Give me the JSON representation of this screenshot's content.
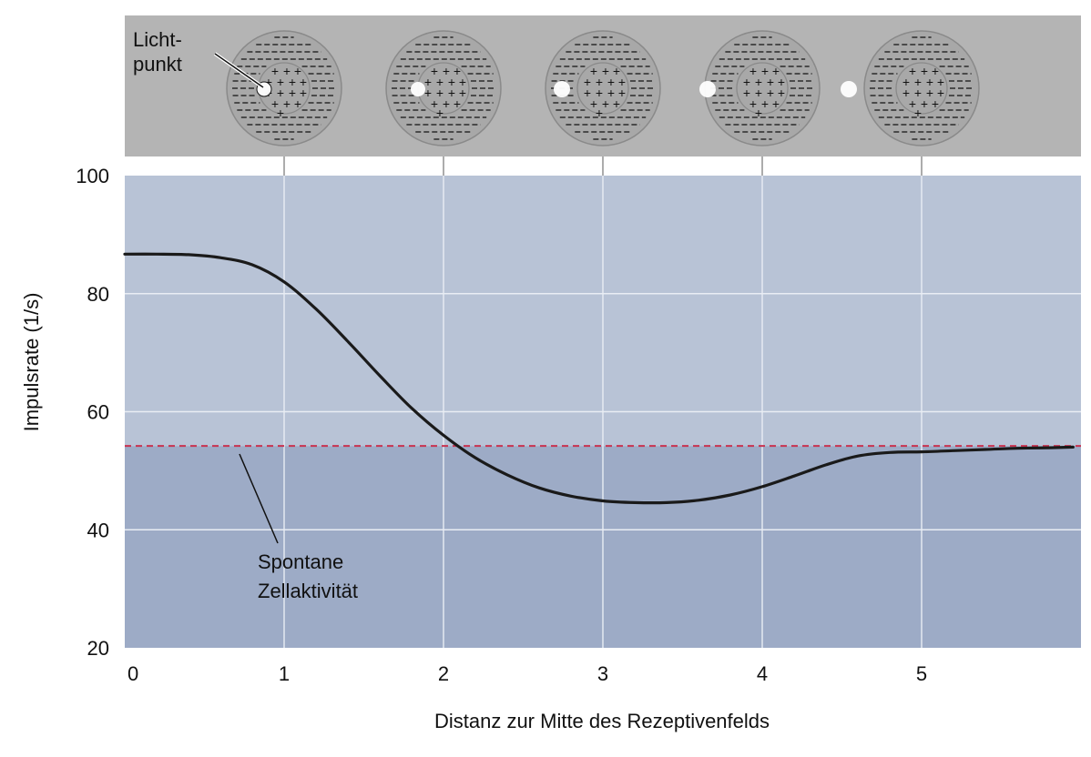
{
  "chart_data": {
    "type": "line",
    "xlabel": "Distanz zur Mitte des Rezeptivenfelds",
    "ylabel": "Impulsrate (1/s)",
    "xlim": [
      0,
      6
    ],
    "ylim": [
      20,
      100
    ],
    "xticks": [
      "0",
      "1",
      "2",
      "3",
      "4",
      "5"
    ],
    "yticks": [
      "20",
      "40",
      "60",
      "80",
      "100"
    ],
    "grid": true,
    "series": [
      {
        "x": [
          0,
          0.2,
          0.4,
          0.6,
          0.8,
          1.0,
          1.2,
          1.4,
          1.6,
          1.8,
          2.0,
          2.2,
          2.4,
          2.6,
          2.8,
          3.0,
          3.2,
          3.4,
          3.6,
          3.8,
          4.0,
          4.2,
          4.4,
          4.6,
          4.8,
          5.0,
          5.2,
          5.4,
          5.6,
          5.8,
          5.95
        ],
        "y": [
          86.7,
          86.7,
          86.6,
          86.1,
          84.9,
          82.0,
          77.4,
          71.9,
          66.1,
          60.6,
          56.0,
          52.2,
          49.3,
          47.1,
          45.7,
          44.9,
          44.6,
          44.6,
          45.0,
          45.9,
          47.3,
          49.1,
          51.0,
          52.5,
          53.1,
          53.2,
          53.4,
          53.6,
          53.8,
          53.9,
          54.0
        ],
        "color": "#1a1a1a"
      }
    ],
    "reference_line": {
      "y": 54.2,
      "color": "#c8324f",
      "label_line1": "Spontane",
      "label_line2": "Zellaktivität"
    },
    "stimuli": {
      "label_line1": "Licht-",
      "label_line2": "punkt",
      "center_sign": "+",
      "surround_sign": "–",
      "positions": [
        1,
        2,
        3,
        4,
        5
      ],
      "spot_offsets": [
        0.126,
        0.16,
        0.258,
        0.35,
        0.447
      ]
    },
    "colors": {
      "panel_top": "#b4b4b4",
      "plot_above": "#b8c3d6",
      "plot_below": "#9dabc6",
      "grid": "#e9edf4",
      "field_fill": "#a8a8a8",
      "field_stroke": "#8a8a8a"
    }
  }
}
